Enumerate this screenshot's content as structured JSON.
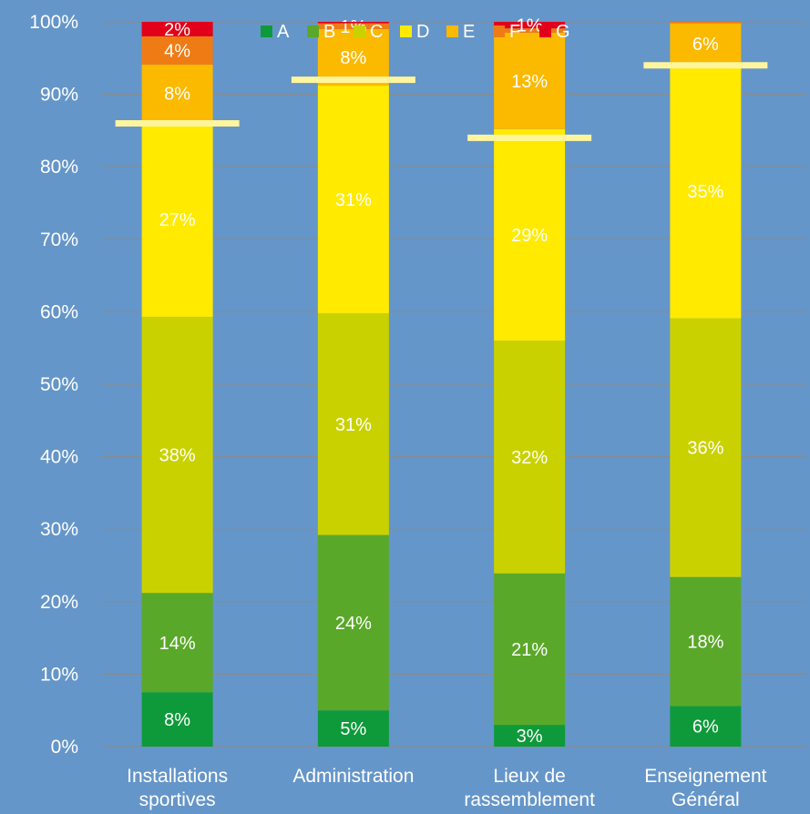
{
  "chart_data": {
    "type": "bar",
    "stacked": true,
    "percent": true,
    "categories": [
      [
        "Installations",
        "sportives"
      ],
      [
        "Administration"
      ],
      [
        "Lieux de",
        "rassemblement"
      ],
      [
        "Enseignement",
        "Général"
      ]
    ],
    "y_ticks": [
      "0%",
      "10%",
      "20%",
      "30%",
      "40%",
      "50%",
      "60%",
      "70%",
      "80%",
      "90%",
      "100%"
    ],
    "ylim": [
      0,
      100
    ],
    "grid": true,
    "legend_position": "top",
    "series": [
      {
        "name": "A",
        "color": "#0e9a3a",
        "label_color": "#ffffff",
        "values": [
          7.5,
          5,
          3,
          5.6
        ],
        "labels": [
          "8%",
          "5%",
          "3%",
          "6%"
        ]
      },
      {
        "name": "B",
        "color": "#5aa829",
        "label_color": "#ffffff",
        "values": [
          13.7,
          24.2,
          20.9,
          17.8
        ],
        "labels": [
          "14%",
          "24%",
          "21%",
          "18%"
        ]
      },
      {
        "name": "C",
        "color": "#c9d200",
        "label_color": "#ffffff",
        "values": [
          38.1,
          30.6,
          32.1,
          35.7
        ],
        "labels": [
          "38%",
          "31%",
          "32%",
          "36%"
        ]
      },
      {
        "name": "D",
        "color": "#ffea00",
        "label_color": "#ffffff",
        "values": [
          26.9,
          31.4,
          29.2,
          35.1
        ],
        "labels": [
          "27%",
          "31%",
          "29%",
          "35%"
        ]
      },
      {
        "name": "E",
        "color": "#fbb900",
        "label_color": "#ffffff",
        "values": [
          7.9,
          7.8,
          13.3,
          5.6
        ],
        "labels": [
          "8%",
          "8%",
          "13%",
          "6%"
        ]
      },
      {
        "name": "F",
        "color": "#ef7b14",
        "label_color": "#ffffff",
        "values": [
          3.9,
          0.8,
          0.6,
          0.2
        ],
        "labels": [
          "4%",
          "1%",
          "",
          ""
        ]
      },
      {
        "name": "G",
        "color": "#e2001a",
        "label_color": "#ffffff",
        "values": [
          2.0,
          0.2,
          0.9,
          0
        ],
        "labels": [
          "2%",
          "",
          "1%",
          ""
        ]
      }
    ],
    "reference_lines": [
      86,
      92,
      84,
      94
    ],
    "reference_line_color": "#fff59d"
  }
}
